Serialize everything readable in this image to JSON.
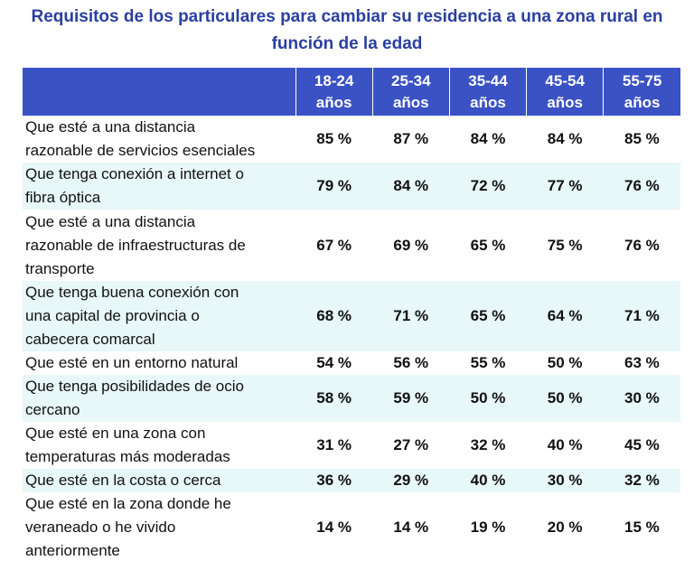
{
  "chart_data": {
    "type": "table",
    "title_line1": "Requisitos de los particulares para cambiar su residencia a una zona rural en",
    "title_line2": "función de la edad",
    "columns": [
      {
        "range": "18-24",
        "unit": "años"
      },
      {
        "range": "25-34",
        "unit": "años"
      },
      {
        "range": "35-44",
        "unit": "años"
      },
      {
        "range": "45-54",
        "unit": "años"
      },
      {
        "range": "55-75",
        "unit": "años"
      }
    ],
    "rows": [
      {
        "label_lines": [
          "Que esté a una distancia",
          "razonable de servicios esenciales"
        ],
        "values": [
          "85 %",
          "87 %",
          "84 %",
          "84 %",
          "85 %"
        ]
      },
      {
        "label_lines": [
          "Que tenga conexión a internet o",
          "fibra óptica"
        ],
        "values": [
          "79 %",
          "84 %",
          "72 %",
          "77 %",
          "76 %"
        ]
      },
      {
        "label_lines": [
          "Que esté a una distancia",
          "razonable de infraestructuras de",
          "transporte"
        ],
        "values": [
          "67 %",
          "69 %",
          "65 %",
          "75 %",
          "76 %"
        ]
      },
      {
        "label_lines": [
          "Que tenga buena conexión con",
          "una capital de provincia o",
          "cabecera comarcal"
        ],
        "values": [
          "68 %",
          "71 %",
          "65 %",
          "64 %",
          "71 %"
        ]
      },
      {
        "label_lines": [
          "Que esté en un entorno natural"
        ],
        "values": [
          "54 %",
          "56 %",
          "55 %",
          "50 %",
          "63 %"
        ]
      },
      {
        "label_lines": [
          "Que tenga posibilidades de ocio",
          "cercano"
        ],
        "values": [
          "58 %",
          "59 %",
          "50 %",
          "50 %",
          "30 %"
        ]
      },
      {
        "label_lines": [
          "Que esté en una zona con",
          "temperaturas más moderadas"
        ],
        "values": [
          "31 %",
          "27 %",
          "32 %",
          "40 %",
          "45 %"
        ]
      },
      {
        "label_lines": [
          "Que esté en la costa o cerca"
        ],
        "values": [
          "36 %",
          "29 %",
          "40 %",
          "30 %",
          "32 %"
        ]
      },
      {
        "label_lines": [
          "Que esté en la zona donde he",
          "veraneado o he vivido",
          "anteriormente"
        ],
        "values": [
          "14 %",
          "14 %",
          "19 %",
          "20 %",
          "15 %"
        ]
      }
    ],
    "header_color": "#3a52c4",
    "stripe_color": "#e8f7f7",
    "title_color": "#2a3fa0"
  }
}
